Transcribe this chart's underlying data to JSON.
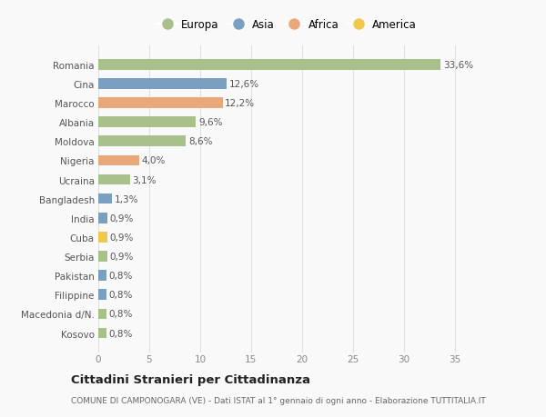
{
  "countries": [
    "Romania",
    "Cina",
    "Marocco",
    "Albania",
    "Moldova",
    "Nigeria",
    "Ucraina",
    "Bangladesh",
    "India",
    "Cuba",
    "Serbia",
    "Pakistan",
    "Filippine",
    "Macedonia d/N.",
    "Kosovo"
  ],
  "values": [
    33.6,
    12.6,
    12.2,
    9.6,
    8.6,
    4.0,
    3.1,
    1.3,
    0.9,
    0.9,
    0.9,
    0.8,
    0.8,
    0.8,
    0.8
  ],
  "labels": [
    "33,6%",
    "12,6%",
    "12,2%",
    "9,6%",
    "8,6%",
    "4,0%",
    "3,1%",
    "1,3%",
    "0,9%",
    "0,9%",
    "0,9%",
    "0,8%",
    "0,8%",
    "0,8%",
    "0,8%"
  ],
  "continents": [
    "Europa",
    "Asia",
    "Africa",
    "Europa",
    "Europa",
    "Africa",
    "Europa",
    "Asia",
    "Asia",
    "America",
    "Europa",
    "Asia",
    "Asia",
    "Europa",
    "Europa"
  ],
  "continent_colors": {
    "Europa": "#a8c08a",
    "Asia": "#7a9fc0",
    "Africa": "#e8a97a",
    "America": "#f0c84a"
  },
  "legend_order": [
    "Europa",
    "Asia",
    "Africa",
    "America"
  ],
  "xlim": [
    0,
    37
  ],
  "xticks": [
    0,
    5,
    10,
    15,
    20,
    25,
    30,
    35
  ],
  "title": "Cittadini Stranieri per Cittadinanza",
  "subtitle": "COMUNE DI CAMPONOGARA (VE) - Dati ISTAT al 1° gennaio di ogni anno - Elaborazione TUTTITALIA.IT",
  "background_color": "#f9f9f9",
  "grid_color": "#e0e0e0",
  "bar_height": 0.55,
  "label_fontsize": 7.5,
  "ytick_fontsize": 7.5,
  "xtick_fontsize": 7.5,
  "title_fontsize": 9.5,
  "subtitle_fontsize": 6.5
}
